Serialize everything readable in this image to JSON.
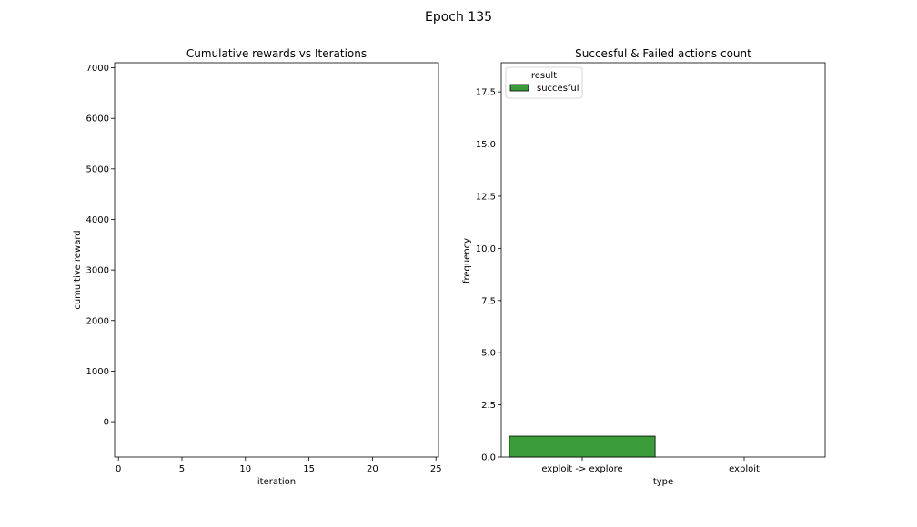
{
  "figure": {
    "suptitle": "Epoch 135"
  },
  "chart_data": [
    {
      "type": "line",
      "title": "Cumulative rewards vs Iterations",
      "xlabel": "iteration",
      "ylabel": "cumultive reward",
      "xlim": [
        -0.3,
        25.2
      ],
      "ylim": [
        -700,
        7100
      ],
      "xticks": [
        0,
        5,
        10,
        15,
        20,
        25
      ],
      "yticks": [
        0,
        1000,
        2000,
        3000,
        4000,
        5000,
        6000,
        7000
      ],
      "series": [],
      "grid": false
    },
    {
      "type": "bar",
      "title": "Succesful & Failed actions count",
      "xlabel": "type",
      "ylabel": "frequency",
      "categories": [
        "exploit -> explore",
        "exploit"
      ],
      "ylim": [
        0,
        18.9
      ],
      "yticks": [
        "0.0",
        "2.5",
        "5.0",
        "7.5",
        "10.0",
        "12.5",
        "15.0",
        "17.5"
      ],
      "legend": {
        "title": "result",
        "location": "upper-left",
        "entries": [
          {
            "label": "succesful",
            "color": "#3a9d3a"
          }
        ]
      },
      "series": [
        {
          "name": "succesful",
          "color": "#3a9d3a",
          "values": [
            1,
            0
          ]
        }
      ],
      "grid": false
    }
  ]
}
